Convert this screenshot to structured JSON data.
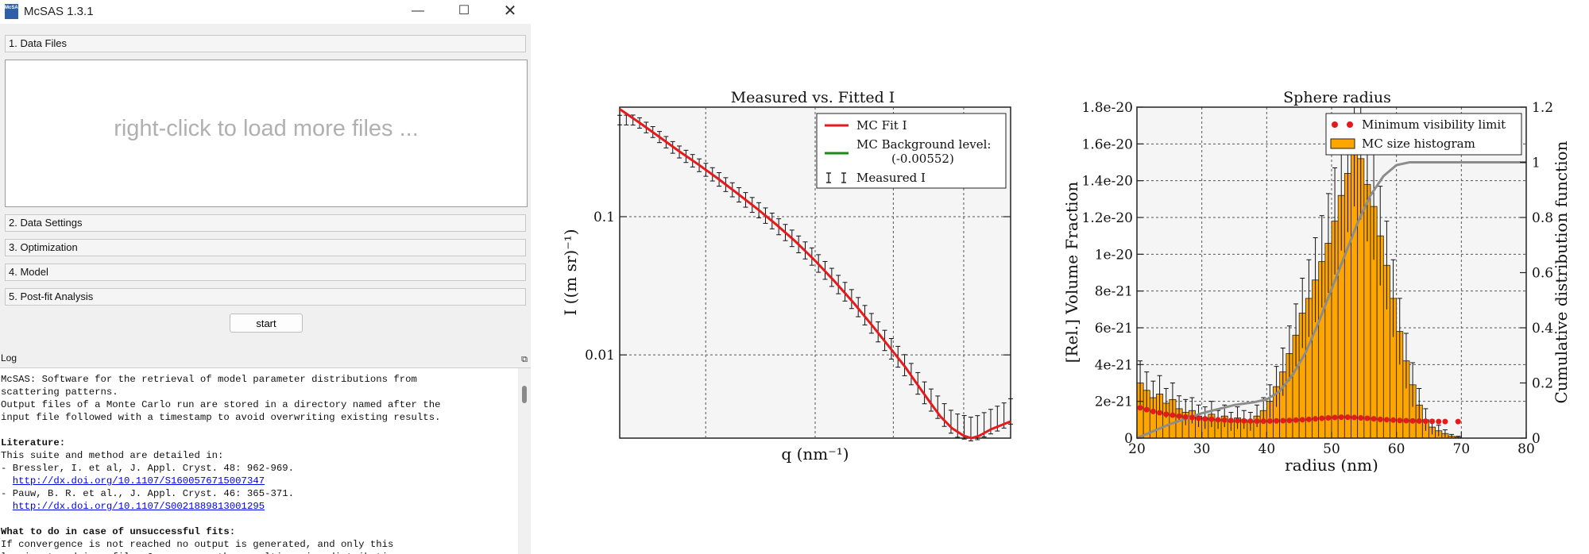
{
  "window": {
    "title": "McSAS 1.3.1",
    "icon_label": "McSAS",
    "minimize_glyph": "—",
    "maximize_glyph": "☐",
    "close_glyph": "✕"
  },
  "sections": {
    "data_files": "1. Data Files",
    "data_settings": "2. Data Settings",
    "optimization": "3. Optimization",
    "model": "4. Model",
    "postfit": "5. Post-fit Analysis"
  },
  "files_placeholder": "right-click to load more files ...",
  "start_label": "start",
  "log": {
    "header": "Log",
    "undock_glyph": "⧉",
    "lines": [
      "McSAS: Software for the retrieval of model parameter distributions from",
      "scattering patterns.",
      "Output files of a Monte Carlo run are stored in a directory named after the",
      "input file followed with a timestamp to avoid overwriting existing results.",
      "",
      "Literature:",
      "This suite and method are detailed in:",
      "- Bressler, I. et al, J. Appl. Cryst. 48: 962-969.",
      "  http://dx.doi.org/10.1107/S1600576715007347",
      "- Pauw, B. R. et al., J. Appl. Cryst. 46: 365-371.",
      "  http://dx.doi.org/10.1107/S0021889813001295",
      "",
      "What to do in case of unsuccessful fits:",
      "If convergence is not reached no output is generated, and only this",
      "log is stored in a file. On success, the resulting size distribution"
    ],
    "bold_lines": [
      5,
      12
    ],
    "link_lines": [
      8,
      10
    ]
  },
  "colors": {
    "fit_line": "#e8191a",
    "background_line": "#1a8a1a",
    "histogram": "#ffa500",
    "visibility": "#e8191a",
    "cdf": "#8c8c8c",
    "plot_bg": "#f5f5f5"
  },
  "chart_data": [
    {
      "type": "line",
      "title": "Measured vs. Fitted I",
      "xlabel": "q (nm⁻¹)",
      "ylabel": "I ((m sr)⁻¹)",
      "yscale": "log",
      "xscale": "log",
      "ylim": [
        0.0025,
        0.62
      ],
      "yticks": [
        {
          "label": "0.1",
          "value": 0.1
        },
        {
          "label": "0.01",
          "value": 0.01
        }
      ],
      "grid": true,
      "legend_position": "top-right",
      "legend": {
        "fit": "MC Fit I",
        "background": "MC Background level:",
        "background_value": "(-0.00552)",
        "measured": "Measured I"
      },
      "background_level": -0.00552,
      "series": [
        {
          "name": "MC Fit I",
          "points": [
            [
              0.0,
              0.6
            ],
            [
              0.05,
              0.48
            ],
            [
              0.1,
              0.38
            ],
            [
              0.15,
              0.3
            ],
            [
              0.2,
              0.24
            ],
            [
              0.25,
              0.19
            ],
            [
              0.3,
              0.148
            ],
            [
              0.35,
              0.115
            ],
            [
              0.4,
              0.088
            ],
            [
              0.45,
              0.066
            ],
            [
              0.5,
              0.048
            ],
            [
              0.55,
              0.034
            ],
            [
              0.6,
              0.0235
            ],
            [
              0.65,
              0.0158
            ],
            [
              0.7,
              0.0105
            ],
            [
              0.73,
              0.0082
            ],
            [
              0.76,
              0.0062
            ],
            [
              0.79,
              0.0047
            ],
            [
              0.82,
              0.0036
            ],
            [
              0.85,
              0.00295
            ],
            [
              0.88,
              0.0026
            ],
            [
              0.9,
              0.0025
            ],
            [
              0.92,
              0.0026
            ],
            [
              0.95,
              0.0029
            ],
            [
              1.0,
              0.0033
            ]
          ]
        },
        {
          "name": "Measured I",
          "points": [
            [
              0.04,
              0.5
            ],
            [
              0.09,
              0.4
            ],
            [
              0.14,
              0.31
            ],
            [
              0.19,
              0.25
            ],
            [
              0.24,
              0.2
            ],
            [
              0.29,
              0.155
            ],
            [
              0.34,
              0.121
            ],
            [
              0.39,
              0.093
            ],
            [
              0.44,
              0.07
            ],
            [
              0.49,
              0.052
            ],
            [
              0.54,
              0.037
            ],
            [
              0.59,
              0.026
            ],
            [
              0.64,
              0.0175
            ],
            [
              0.69,
              0.0115
            ],
            [
              0.72,
              0.0091
            ],
            [
              0.75,
              0.007
            ],
            [
              0.78,
              0.0053
            ],
            [
              0.8,
              0.0046
            ],
            [
              0.82,
              0.004
            ],
            [
              0.84,
              0.0034
            ],
            [
              0.86,
              0.0031
            ],
            [
              0.88,
              0.003
            ],
            [
              0.9,
              0.0029
            ],
            [
              0.92,
              0.003
            ],
            [
              0.94,
              0.0032
            ],
            [
              0.96,
              0.0034
            ],
            [
              0.98,
              0.0036
            ],
            [
              1.0,
              0.0039
            ]
          ]
        }
      ]
    },
    {
      "type": "bar",
      "title": "Sphere radius",
      "xlabel": "radius (nm)",
      "ylabel": "[Rel.] Volume Fraction",
      "y2label": "Cumulative distribution function",
      "xlim": [
        20,
        80
      ],
      "ylim": [
        0,
        1.8e-20
      ],
      "y2lim": [
        0,
        1.2
      ],
      "xticks": [
        20,
        30,
        40,
        50,
        60,
        70,
        80
      ],
      "yticks": [
        {
          "label": "0",
          "value": 0
        },
        {
          "label": "2e-21",
          "value": 2e-21
        },
        {
          "label": "4e-21",
          "value": 4e-21
        },
        {
          "label": "6e-21",
          "value": 6e-21
        },
        {
          "label": "8e-21",
          "value": 8e-21
        },
        {
          "label": "1e-20",
          "value": 1e-20
        },
        {
          "label": "1.2e-20",
          "value": 1.2e-20
        },
        {
          "label": "1.4e-20",
          "value": 1.4e-20
        },
        {
          "label": "1.6e-20",
          "value": 1.6e-20
        },
        {
          "label": "1.8e-20",
          "value": 1.8e-20
        }
      ],
      "y2ticks": [
        {
          "label": "0",
          "value": 0
        },
        {
          "label": "0.2",
          "value": 0.2
        },
        {
          "label": "0.4",
          "value": 0.4
        },
        {
          "label": "0.6",
          "value": 0.6
        },
        {
          "label": "0.8",
          "value": 0.8
        },
        {
          "label": "1",
          "value": 1.0
        },
        {
          "label": "1.2",
          "value": 1.2
        }
      ],
      "grid": true,
      "legend_position": "top-right",
      "legend": {
        "visibility": "Minimum visibility limit",
        "histogram": "MC size histogram"
      },
      "histogram": {
        "bin_start": 20,
        "bin_width": 1,
        "values": [
          3e-21,
          2.6e-21,
          2.2e-21,
          2.4e-21,
          1.9e-21,
          2.1e-21,
          1.6e-21,
          1.4e-21,
          1.5e-21,
          1.2e-21,
          1.1e-21,
          1.3e-21,
          1e-21,
          1.2e-21,
          9e-22,
          1.1e-21,
          1e-21,
          9e-22,
          1.2e-21,
          1.5e-21,
          2e-21,
          2.8e-21,
          3.6e-21,
          4.6e-21,
          5.6e-21,
          6.8e-21,
          7.6e-21,
          8.6e-21,
          9.6e-21,
          1.06e-20,
          1.18e-20,
          1.32e-20,
          1.44e-20,
          1.6e-20,
          1.52e-20,
          1.38e-20,
          1.26e-20,
          1.1e-20,
          9.4e-21,
          7.6e-21,
          5.8e-21,
          4.2e-21,
          2.9e-21,
          1.8e-21,
          1e-21,
          6e-22,
          4e-22,
          2.5e-22,
          1e-22,
          5e-23,
          0,
          0,
          0,
          0,
          0,
          0,
          0,
          0,
          0,
          0
        ],
        "errors": [
          1.2e-21,
          1e-21,
          9e-22,
          1e-21,
          8e-22,
          9e-22,
          7e-22,
          7e-22,
          7e-22,
          6e-22,
          6e-22,
          7e-22,
          5e-22,
          6e-22,
          5e-22,
          6e-22,
          5e-22,
          5e-22,
          6e-22,
          7e-22,
          9e-22,
          1.1e-21,
          1.3e-21,
          1.5e-21,
          1.7e-21,
          1.9e-21,
          2.1e-21,
          2.3e-21,
          2.5e-21,
          2.7e-21,
          2.9e-21,
          3e-21,
          3.2e-21,
          3.4e-21,
          3.3e-21,
          3.1e-21,
          2.9e-21,
          2.7e-21,
          2.4e-21,
          2.1e-21,
          1.8e-21,
          1.5e-21,
          1.2e-21,
          9e-22,
          6e-22,
          4e-22,
          3e-22,
          2e-22,
          1e-22,
          5e-23,
          0,
          0,
          0,
          0,
          0,
          0,
          0,
          0,
          0,
          0
        ]
      },
      "visibility_limit": {
        "x": [
          20.5,
          21.5,
          22.5,
          23.5,
          24.5,
          25.5,
          26.5,
          27.5,
          28.5,
          29.5,
          30.5,
          31.5,
          32.5,
          33.5,
          34.5,
          35.5,
          36.5,
          37.5,
          38.5,
          39.5,
          40.5,
          41.5,
          42.5,
          43.5,
          44.5,
          45.5,
          46.5,
          47.5,
          48.5,
          49.5,
          50.5,
          51.5,
          52.5,
          53.5,
          54.5,
          55.5,
          56.5,
          57.5,
          58.5,
          59.5,
          60.5,
          61.5,
          62.5,
          63.5,
          64.5,
          65.5,
          66.5,
          67.5,
          69.5
        ],
        "y": [
          1.65e-21,
          1.55e-21,
          1.45e-21,
          1.38e-21,
          1.3e-21,
          1.25e-21,
          1.2e-21,
          1.15e-21,
          1.12e-21,
          1.08e-21,
          1.05e-21,
          1.03e-21,
          1e-21,
          9.8e-22,
          9.6e-22,
          9.5e-22,
          9.4e-22,
          9.3e-22,
          9.2e-22,
          9.2e-22,
          9.3e-22,
          9.4e-22,
          9.5e-22,
          9.6e-22,
          9.8e-22,
          1e-21,
          1.02e-21,
          1.05e-21,
          1.08e-21,
          1.1e-21,
          1.12e-21,
          1.14e-21,
          1.14e-21,
          1.12e-21,
          1.1e-21,
          1.08e-21,
          1.05e-21,
          1.02e-21,
          1e-21,
          9.8e-22,
          9.6e-22,
          9.5e-22,
          9.4e-22,
          9.3e-22,
          9.2e-22,
          9.1e-22,
          9e-22,
          9e-22,
          9e-22
        ]
      },
      "cdf": {
        "x": [
          20,
          25,
          30,
          35,
          38,
          40,
          42,
          44,
          46,
          48,
          50,
          52,
          54,
          56,
          58,
          60,
          62,
          65,
          70,
          80
        ],
        "y": [
          0.0,
          0.05,
          0.09,
          0.12,
          0.13,
          0.14,
          0.17,
          0.23,
          0.31,
          0.42,
          0.54,
          0.66,
          0.78,
          0.88,
          0.95,
          0.99,
          1.0,
          1.0,
          1.0,
          1.0
        ]
      }
    }
  ]
}
